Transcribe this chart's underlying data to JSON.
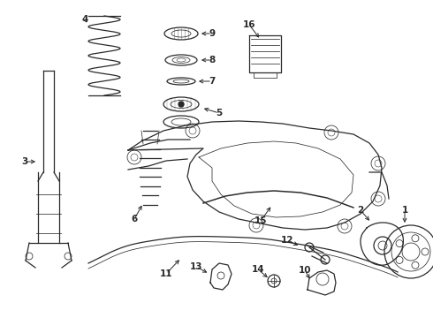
{
  "bg_color": "#ffffff",
  "line_color": "#2a2a2a",
  "fig_width": 4.9,
  "fig_height": 3.6,
  "dpi": 100,
  "label_fs": 7.5,
  "lw": 0.9
}
